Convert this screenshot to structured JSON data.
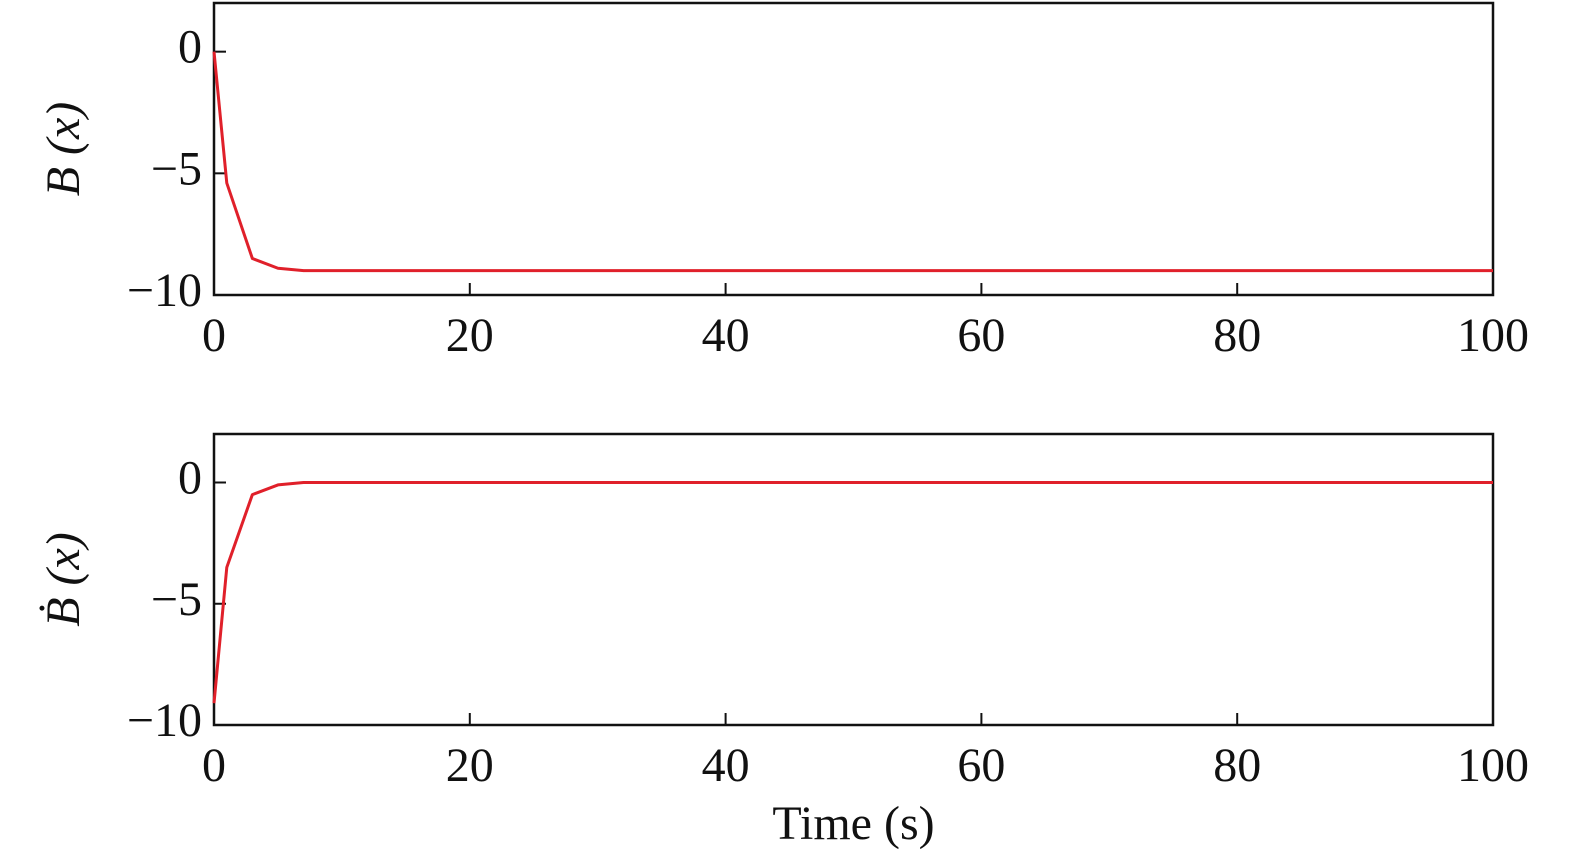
{
  "chart_data": [
    {
      "type": "line",
      "ylabel": "B (x)",
      "x": [
        0,
        1,
        3,
        5,
        7,
        100
      ],
      "values": [
        0,
        -5.4,
        -8.5,
        -8.9,
        -9,
        -9
      ],
      "color": "#e0202a",
      "xlim": [
        0,
        100
      ],
      "xticks": [
        0,
        20,
        40,
        60,
        80,
        100
      ],
      "ylim": [
        -10,
        2
      ],
      "yticks": [
        {
          "value": -10,
          "label": "−10"
        },
        {
          "value": -5,
          "label": "−5"
        },
        0
      ]
    },
    {
      "type": "line",
      "ylabel": "Ḃ (x)",
      "xlabel": "Time (s)",
      "x": [
        0,
        1,
        3,
        5,
        7,
        100
      ],
      "values": [
        -9.1,
        -3.5,
        -0.5,
        -0.1,
        0,
        0
      ],
      "color": "#e0202a",
      "xlim": [
        0,
        100
      ],
      "xticks": [
        0,
        20,
        40,
        60,
        80,
        100
      ],
      "ylim": [
        -10,
        2
      ],
      "yticks": [
        {
          "value": -10,
          "label": "−10"
        },
        {
          "value": -5,
          "label": "−5"
        },
        0
      ]
    }
  ]
}
